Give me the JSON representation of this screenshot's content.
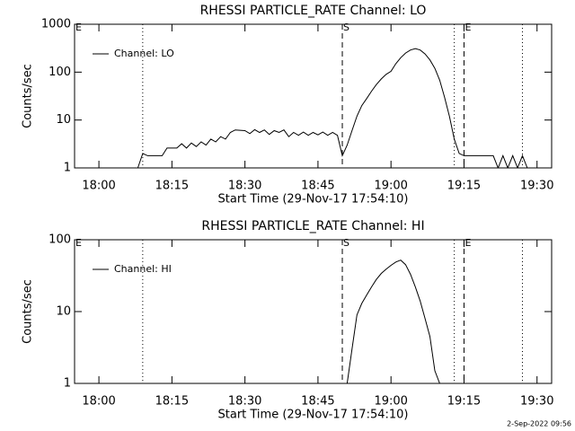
{
  "chart_data": [
    {
      "type": "line",
      "title": "RHESSI PARTICLE_RATE Channel: LO",
      "xlabel": "Start Time (29-Nov-17 17:54:10)",
      "ylabel": "Counts/sec",
      "yscale": "log",
      "ylim": [
        1,
        1000
      ],
      "yticks": [
        1,
        10,
        100,
        1000
      ],
      "xlim": [
        "17:55",
        "19:33"
      ],
      "xticks": [
        "18:00",
        "18:15",
        "18:30",
        "18:45",
        "19:00",
        "19:15",
        "19:30"
      ],
      "legend": "upper left",
      "vlines": [
        {
          "x": "17:55",
          "label": "E"
        },
        {
          "x": "18:09",
          "style": "dotted"
        },
        {
          "x": "18:50",
          "style": "dashed",
          "label": "S"
        },
        {
          "x": "19:13",
          "style": "dotted"
        },
        {
          "x": "19:15",
          "style": "dashed",
          "label": "E"
        },
        {
          "x": "19:27",
          "style": "dotted"
        }
      ],
      "series": [
        {
          "name": "Channel: LO",
          "color": "#000000",
          "x": [
            "18:08",
            "18:09",
            "18:10",
            "18:11",
            "18:12",
            "18:13",
            "18:14",
            "18:16",
            "18:17",
            "18:18",
            "18:19",
            "18:20",
            "18:21",
            "18:22",
            "18:23",
            "18:24",
            "18:25",
            "18:26",
            "18:27",
            "18:28",
            "18:30",
            "18:31",
            "18:32",
            "18:33",
            "18:34",
            "18:35",
            "18:36",
            "18:37",
            "18:38",
            "18:39",
            "18:40",
            "18:41",
            "18:42",
            "18:43",
            "18:44",
            "18:45",
            "18:46",
            "18:47",
            "18:48",
            "18:49",
            "18:50",
            "18:51",
            "18:52",
            "18:53",
            "18:54",
            "18:55",
            "18:56",
            "18:57",
            "18:58",
            "18:59",
            "19:00",
            "19:01",
            "19:02",
            "19:03",
            "19:04",
            "19:05",
            "19:06",
            "19:07",
            "19:08",
            "19:09",
            "19:10",
            "19:11",
            "19:12",
            "19:13",
            "19:14",
            "19:15",
            "19:16",
            "19:20",
            "19:21",
            "19:22",
            "19:23",
            "19:24",
            "19:25",
            "19:26",
            "19:27",
            "19:28"
          ],
          "values": [
            1,
            2,
            1.8,
            1.8,
            1.8,
            1.8,
            2.6,
            2.6,
            3.2,
            2.6,
            3.3,
            2.8,
            3.5,
            3,
            4,
            3.5,
            4.5,
            4,
            5.5,
            6.2,
            6,
            5.2,
            6.3,
            5.5,
            6.2,
            5,
            6,
            5.5,
            6.2,
            4.5,
            5.5,
            4.8,
            5.6,
            4.8,
            5.5,
            4.9,
            5.6,
            4.8,
            5.5,
            4.8,
            1.8,
            3,
            6,
            12,
            20,
            28,
            40,
            55,
            72,
            90,
            104,
            150,
            200,
            250,
            290,
            310,
            290,
            240,
            180,
            120,
            68,
            30,
            12,
            4,
            2,
            1.8,
            1.8,
            1.8,
            1.8,
            1,
            1.8,
            1,
            1.8,
            1,
            1.8,
            1
          ]
        }
      ]
    },
    {
      "type": "line",
      "title": "RHESSI PARTICLE_RATE Channel: HI",
      "xlabel": "Start Time (29-Nov-17 17:54:10)",
      "ylabel": "Counts/sec",
      "yscale": "log",
      "ylim": [
        1,
        100
      ],
      "yticks": [
        1,
        10,
        100
      ],
      "xlim": [
        "17:55",
        "19:33"
      ],
      "xticks": [
        "18:00",
        "18:15",
        "18:30",
        "18:45",
        "19:00",
        "19:15",
        "19:30"
      ],
      "legend": "upper left",
      "vlines": [
        {
          "x": "17:55",
          "label": "E"
        },
        {
          "x": "18:09",
          "style": "dotted"
        },
        {
          "x": "18:50",
          "style": "dashed",
          "label": "S"
        },
        {
          "x": "19:13",
          "style": "dotted"
        },
        {
          "x": "19:15",
          "style": "dashed",
          "label": "E"
        },
        {
          "x": "19:27",
          "style": "dotted"
        }
      ],
      "series": [
        {
          "name": "Channel: HI",
          "color": "#000000",
          "x": [
            "18:51",
            "18:52",
            "18:53",
            "18:54",
            "18:55",
            "18:56",
            "18:57",
            "18:58",
            "18:59",
            "19:00",
            "19:01",
            "19:02",
            "19:03",
            "19:04",
            "19:05",
            "19:06",
            "19:07",
            "19:08",
            "19:09",
            "19:10"
          ],
          "values": [
            1,
            3,
            9,
            13,
            17,
            22,
            28,
            34,
            39,
            44,
            49,
            52,
            45,
            33,
            22,
            14,
            8,
            4.5,
            1.5,
            1
          ]
        }
      ]
    }
  ],
  "footer": "2-Sep-2022 09:56"
}
